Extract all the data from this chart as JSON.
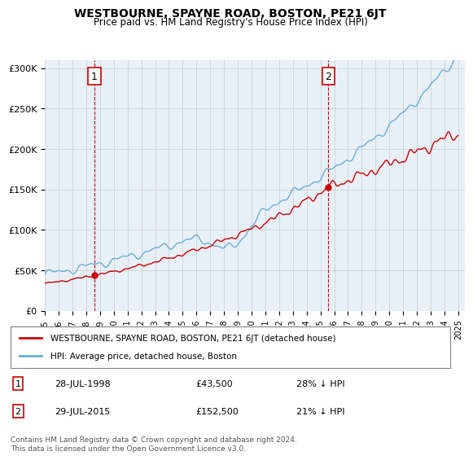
{
  "title": "WESTBOURNE, SPAYNE ROAD, BOSTON, PE21 6JT",
  "subtitle": "Price paid vs. HM Land Registry's House Price Index (HPI)",
  "ylabel_ticks": [
    "£0",
    "£50K",
    "£100K",
    "£150K",
    "£200K",
    "£250K",
    "£300K"
  ],
  "ytick_values": [
    0,
    50000,
    100000,
    150000,
    200000,
    250000,
    300000
  ],
  "ylim": [
    0,
    310000
  ],
  "x_start_year": 1995,
  "x_end_year": 2025,
  "purchase1_date": "28-JUL-1998",
  "purchase1_price": 43500,
  "purchase1_label": "28-JUL-1998",
  "purchase1_amount": "£43,500",
  "purchase1_hpi": "28% ↓ HPI",
  "purchase2_date": "29-JUL-2015",
  "purchase2_price": 152500,
  "purchase2_label": "29-JUL-2015",
  "purchase2_amount": "£152,500",
  "purchase2_hpi": "21% ↓ HPI",
  "legend_line1": "WESTBOURNE, SPAYNE ROAD, BOSTON, PE21 6JT (detached house)",
  "legend_line2": "HPI: Average price, detached house, Boston",
  "footer": "Contains HM Land Registry data © Crown copyright and database right 2024.\nThis data is licensed under the Open Government Licence v3.0.",
  "hpi_color": "#6baed6",
  "price_color": "#cc0000",
  "marker_color": "#cc0000",
  "vline_color": "#cc0000",
  "bg_color": "#e8f0f8",
  "grid_color": "#cccccc",
  "box_color": "#cc0000"
}
